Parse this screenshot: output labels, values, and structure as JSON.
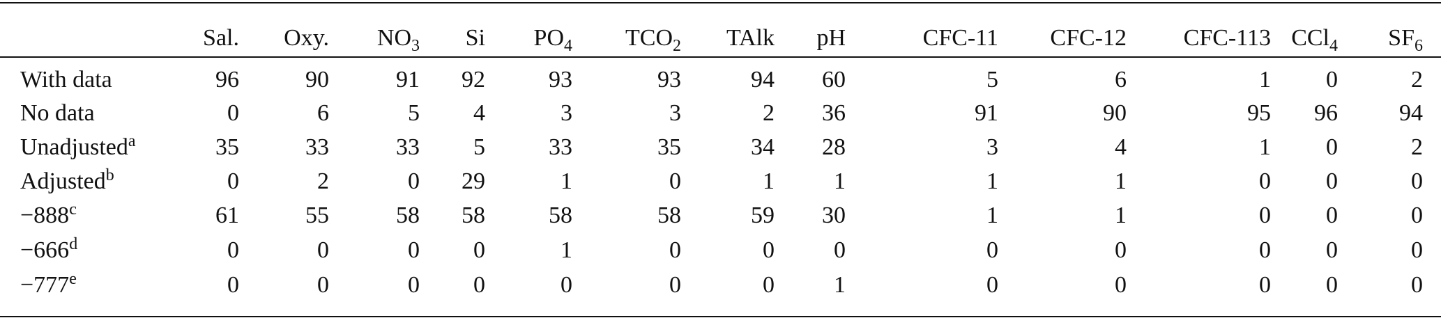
{
  "table": {
    "columns": [
      {
        "text": "Sal."
      },
      {
        "text": "Oxy."
      },
      {
        "text": "NO",
        "sub": "3"
      },
      {
        "text": "Si"
      },
      {
        "text": "PO",
        "sub": "4"
      },
      {
        "text": "TCO",
        "sub": "2"
      },
      {
        "text": "TAlk"
      },
      {
        "text": "pH"
      },
      {
        "text": "CFC-11"
      },
      {
        "text": "CFC-12"
      },
      {
        "text": "CFC-113"
      },
      {
        "text": "CCl",
        "sub": "4"
      },
      {
        "text": "SF",
        "sub": "6"
      }
    ],
    "rows": [
      {
        "label": "With data",
        "values": [
          96,
          90,
          91,
          92,
          93,
          93,
          94,
          60,
          5,
          6,
          1,
          0,
          2
        ]
      },
      {
        "label": "No data",
        "values": [
          0,
          6,
          5,
          4,
          3,
          3,
          2,
          36,
          91,
          90,
          95,
          96,
          94
        ]
      },
      {
        "label": "Unadjusted",
        "note": "a",
        "values": [
          35,
          33,
          33,
          5,
          33,
          35,
          34,
          28,
          3,
          4,
          1,
          0,
          2
        ]
      },
      {
        "label": "Adjusted",
        "note": "b",
        "values": [
          0,
          2,
          0,
          29,
          1,
          0,
          1,
          1,
          1,
          1,
          0,
          0,
          0
        ]
      },
      {
        "label": "−888",
        "note": "c",
        "values": [
          61,
          55,
          58,
          58,
          58,
          58,
          59,
          30,
          1,
          1,
          0,
          0,
          0
        ]
      },
      {
        "label": "−666",
        "note": "d",
        "values": [
          0,
          0,
          0,
          0,
          1,
          0,
          0,
          0,
          0,
          0,
          0,
          0,
          0
        ]
      },
      {
        "label": "−777",
        "note": "e",
        "values": [
          0,
          0,
          0,
          0,
          0,
          0,
          0,
          1,
          0,
          0,
          0,
          0,
          0
        ]
      }
    ]
  }
}
